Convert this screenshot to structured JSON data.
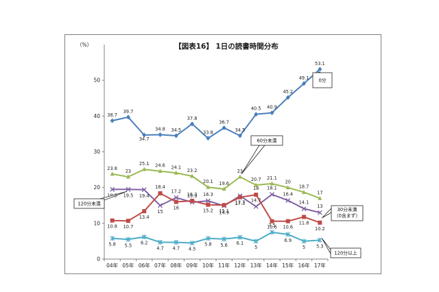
{
  "chart_data": {
    "type": "line",
    "title": "【図表16】 1日の読書時間分布",
    "ylabel": "（%）",
    "xlabel": "",
    "ylim": [
      0,
      60
    ],
    "yticks": [
      0,
      10,
      20,
      30,
      40,
      50
    ],
    "categories": [
      "04年",
      "05年",
      "06年",
      "07年",
      "08年",
      "09年",
      "10年",
      "11年",
      "12年",
      "13年",
      "14年",
      "15年",
      "16年",
      "17年"
    ],
    "series": [
      {
        "name": "0分",
        "color": "#4a7ebb",
        "marker": "diamond",
        "values": [
          38.7,
          39.7,
          34.7,
          34.8,
          34.5,
          37.8,
          33.8,
          36.7,
          34.5,
          40.5,
          40.9,
          45.2,
          49.1,
          53.1
        ]
      },
      {
        "name": "60分未満",
        "color": "#98b954",
        "marker": "triangle",
        "values": [
          23.8,
          23.0,
          25.1,
          24.6,
          24.1,
          23.2,
          20.1,
          19.6,
          23.0,
          20.7,
          21.1,
          20.0,
          18.7,
          17.0
        ]
      },
      {
        "name": "120分未満",
        "color": "#7e62a1",
        "marker": "x",
        "values": [
          19.5,
          19.5,
          19.4,
          15.0,
          17.2,
          15.9,
          16.3,
          14.9,
          17.7,
          14.7,
          18.1,
          16.4,
          14.1,
          13.0
        ]
      },
      {
        "name": "30分未満（0含まず）",
        "color": "#be4b48",
        "marker": "square",
        "values": [
          10.8,
          10.7,
          13.4,
          18.4,
          16.0,
          16.3,
          15.2,
          15.1,
          17.3,
          18.0,
          10.6,
          10.6,
          11.8,
          10.2
        ]
      },
      {
        "name": "120分以上",
        "color": "#4bacc6",
        "marker": "star",
        "values": [
          5.8,
          5.5,
          6.2,
          4.7,
          4.7,
          4.5,
          5.8,
          5.6,
          6.1,
          5.0,
          7.5,
          6.9,
          5.0,
          5.3
        ]
      }
    ],
    "callouts": {
      "s0": "0分",
      "s1": "60分未満",
      "s2": "120分未満",
      "s3_line1": "30分未満",
      "s3_line2": "（0含まず）",
      "s4": "120分以上"
    }
  }
}
